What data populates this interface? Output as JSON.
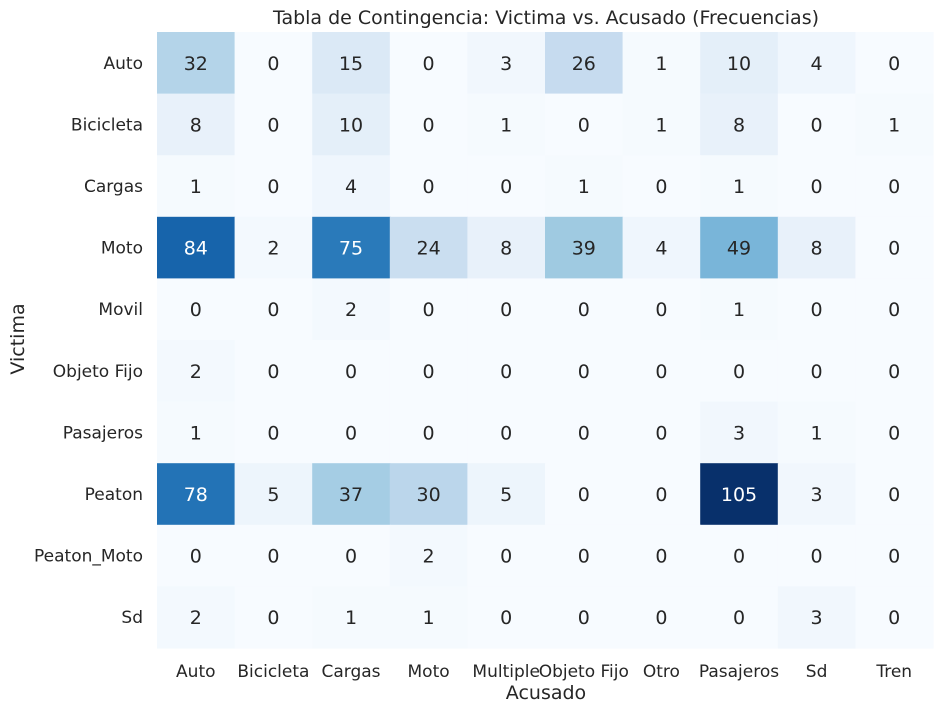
{
  "chart_data": {
    "type": "heatmap",
    "title": "Tabla de Contingencia: Victima vs. Acusado (Frecuencias)",
    "xlabel": "Acusado",
    "ylabel": "Victima",
    "x_categories": [
      "Auto",
      "Bicicleta",
      "Cargas",
      "Moto",
      "Multiple",
      "Objeto Fijo",
      "Otro",
      "Pasajeros",
      "Sd",
      "Tren"
    ],
    "y_categories": [
      "Auto",
      "Bicicleta",
      "Cargas",
      "Moto",
      "Movil",
      "Objeto Fijo",
      "Pasajeros",
      "Peaton",
      "Peaton_Moto",
      "Sd"
    ],
    "values": [
      [
        32,
        0,
        15,
        0,
        3,
        26,
        1,
        10,
        4,
        0
      ],
      [
        8,
        0,
        10,
        0,
        1,
        0,
        1,
        8,
        0,
        1
      ],
      [
        1,
        0,
        4,
        0,
        0,
        1,
        0,
        1,
        0,
        0
      ],
      [
        84,
        2,
        75,
        24,
        8,
        39,
        4,
        49,
        8,
        0
      ],
      [
        0,
        0,
        2,
        0,
        0,
        0,
        0,
        1,
        0,
        0
      ],
      [
        2,
        0,
        0,
        0,
        0,
        0,
        0,
        0,
        0,
        0
      ],
      [
        1,
        0,
        0,
        0,
        0,
        0,
        0,
        3,
        1,
        0
      ],
      [
        78,
        5,
        37,
        30,
        5,
        0,
        0,
        105,
        3,
        0
      ],
      [
        0,
        0,
        0,
        2,
        0,
        0,
        0,
        0,
        0,
        0
      ],
      [
        2,
        0,
        1,
        1,
        0,
        0,
        0,
        0,
        3,
        0
      ]
    ],
    "value_range": [
      0,
      105
    ],
    "colormap": "Blues",
    "colorbar": false,
    "annotations": true,
    "grid": false
  }
}
